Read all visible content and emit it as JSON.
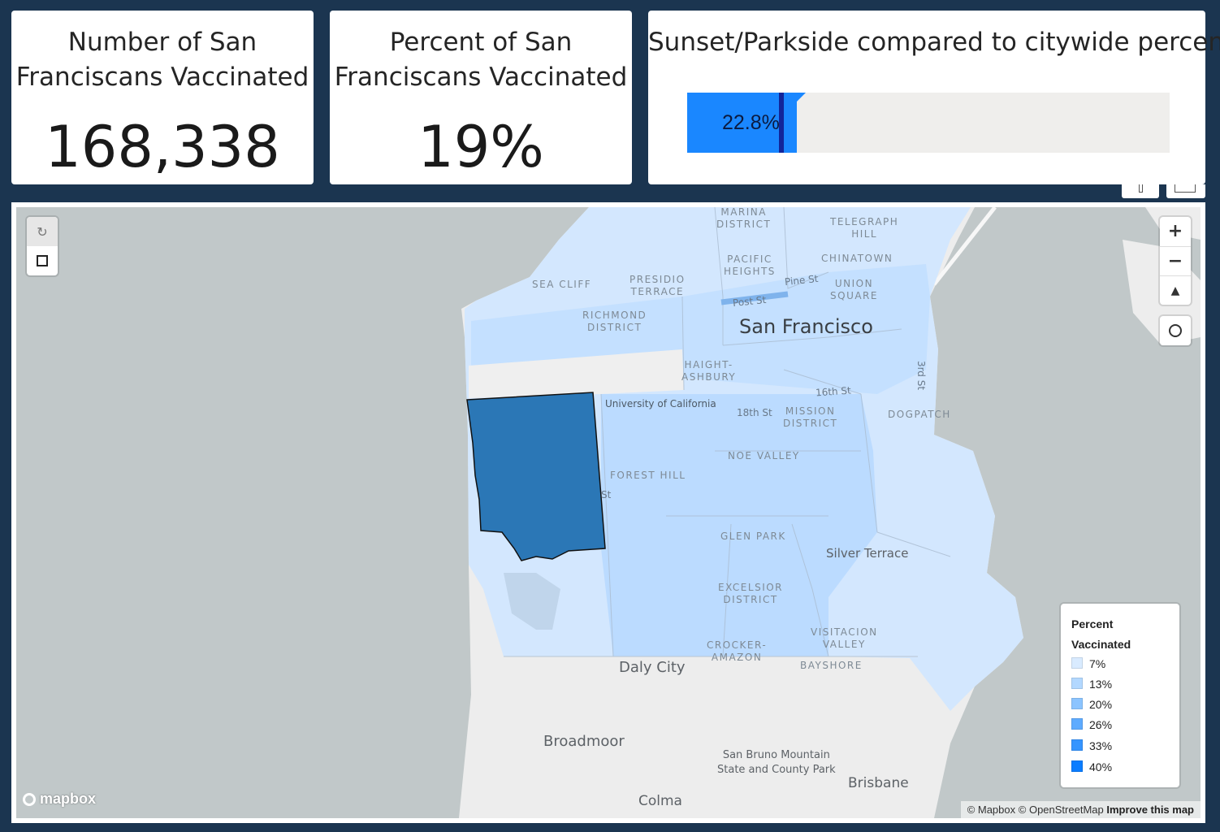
{
  "kpi": [
    {
      "title_line1": "Number of San",
      "title_line2": "Franciscans Vaccinated",
      "value": "168,338"
    },
    {
      "title_line1": "Percent of San",
      "title_line2": "Franciscans Vaccinated",
      "value": "19%"
    }
  ],
  "comparison": {
    "title": "Sunset/Parkside compared to citywide percent",
    "value_label": "22.8%",
    "value_fraction": 0.228,
    "citywide_fraction": 0.19,
    "fill_color": "#1a87ff",
    "marker_color": "#12259a"
  },
  "map": {
    "selected_color": "#2b77b6",
    "labels": {
      "san_francisco": "San Francisco",
      "daly_city": "Daly City",
      "broadmoor": "Broadmoor",
      "colma": "Colma",
      "brisbane": "Brisbane",
      "silver_terrace": "Silver Terrace",
      "san_bruno_1": "San Bruno Mountain",
      "san_bruno_2": "State and County Park",
      "university": "University of California",
      "marina_1": "MARINA",
      "marina_2": "DISTRICT",
      "telegraph_1": "TELEGRAPH",
      "telegraph_2": "HILL",
      "pacific_1": "PACIFIC",
      "pacific_2": "HEIGHTS",
      "chinatown": "CHINATOWN",
      "sea_cliff": "SEA CLIFF",
      "presidio_1": "PRESIDIO",
      "presidio_2": "TERRACE",
      "union_1": "UNION",
      "union_2": "SQUARE",
      "richmond_1": "RICHMOND",
      "richmond_2": "DISTRICT",
      "haight_1": "HAIGHT-",
      "haight_2": "ASHBURY",
      "mission_1": "MISSION",
      "mission_2": "DISTRICT",
      "dogpatch": "DOGPATCH",
      "noe_valley": "NOE VALLEY",
      "forest_hill": "FOREST HILL",
      "glen_park": "GLEN PARK",
      "excelsior_1": "EXCELSIOR",
      "excelsior_2": "DISTRICT",
      "visitacion_1": "VISITACION",
      "visitacion_2": "VALLEY",
      "crocker_1": "CROCKER-",
      "crocker_2": "AMAZON",
      "bayshore": "BAYSHORE",
      "pine_st": "Pine St",
      "post_st": "Post St",
      "st_16": "16th St",
      "st_18": "18th St",
      "st_3rd": "3rd St",
      "st_frag": "St"
    }
  },
  "map_controls": {
    "zoom_in": "+",
    "zoom_out": "−",
    "compass": "▲"
  },
  "legend": {
    "title_line1": "Percent",
    "title_line2": "Vaccinated",
    "items": [
      {
        "label": "7%",
        "color": "#d9ebff"
      },
      {
        "label": "13%",
        "color": "#b3d8ff"
      },
      {
        "label": "20%",
        "color": "#8cc4ff"
      },
      {
        "label": "26%",
        "color": "#5eabff"
      },
      {
        "label": "33%",
        "color": "#3595ff"
      },
      {
        "label": "40%",
        "color": "#0b7dff"
      }
    ]
  },
  "attribution": {
    "mapbox": "© Mapbox",
    "osm": "© OpenStreetMap",
    "improve": "Improve this map",
    "logo": "mapbox"
  }
}
